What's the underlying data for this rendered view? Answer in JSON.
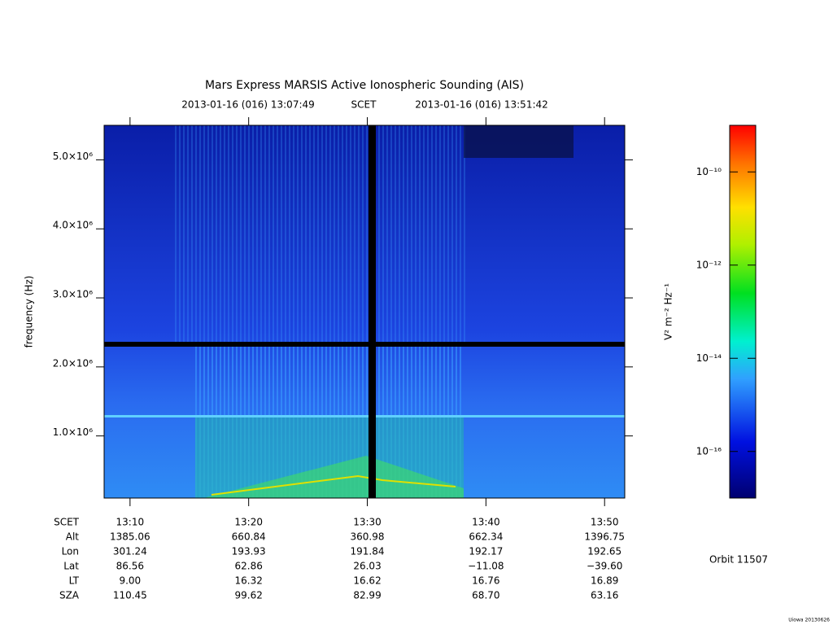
{
  "chart_data": {
    "type": "spectrogram",
    "title": "Mars Express MARSIS Active Ionospheric Sounding (AIS)",
    "start_time": "2013-01-16 (016) 13:07:49",
    "time_system": "SCET",
    "end_time": "2013-01-16 (016) 13:51:42",
    "ylabel": "frequency (Hz)",
    "xlim": [
      "13:07:49",
      "13:51:42"
    ],
    "xticks": [
      "13:10",
      "13:20",
      "13:30",
      "13:40",
      "13:50"
    ],
    "ylim": [
      100000,
      5500000
    ],
    "yticks": [
      {
        "value": 1000000,
        "label": "1.0×10⁶"
      },
      {
        "value": 2000000,
        "label": "2.0×10⁶"
      },
      {
        "value": 3000000,
        "label": "3.0×10⁶"
      },
      {
        "value": 4000000,
        "label": "4.0×10⁶"
      },
      {
        "value": 5000000,
        "label": "5.0×10⁶"
      }
    ],
    "colorbar": {
      "label": "V² m⁻² Hz⁻¹",
      "log_scale": true,
      "clim": [
        1e-17,
        1e-09
      ],
      "ticks": [
        {
          "value": 1e-16,
          "label": "10⁻¹⁶"
        },
        {
          "value": 1e-14,
          "label": "10⁻¹⁴"
        },
        {
          "value": 1e-12,
          "label": "10⁻¹²"
        },
        {
          "value": 1e-10,
          "label": "10⁻¹⁰"
        }
      ]
    },
    "ephemeris": {
      "time_label": "SCET",
      "rows": [
        {
          "name": "Alt",
          "values": [
            "1385.06",
            "660.84",
            "360.98",
            "662.34",
            "1396.75"
          ]
        },
        {
          "name": "Lon",
          "values": [
            "301.24",
            "193.93",
            "191.84",
            "192.17",
            "192.65"
          ]
        },
        {
          "name": "Lat",
          "values": [
            "86.56",
            "62.86",
            "26.03",
            "−11.08",
            "−39.60"
          ]
        },
        {
          "name": "LT",
          "values": [
            "9.00",
            "16.32",
            "16.62",
            "16.76",
            "16.89"
          ]
        },
        {
          "name": "SZA",
          "values": [
            "110.45",
            "99.62",
            "82.99",
            "68.70",
            "63.16"
          ]
        }
      ]
    },
    "orbit": "Orbit 11507",
    "footer": "Uiowa 20130626"
  }
}
